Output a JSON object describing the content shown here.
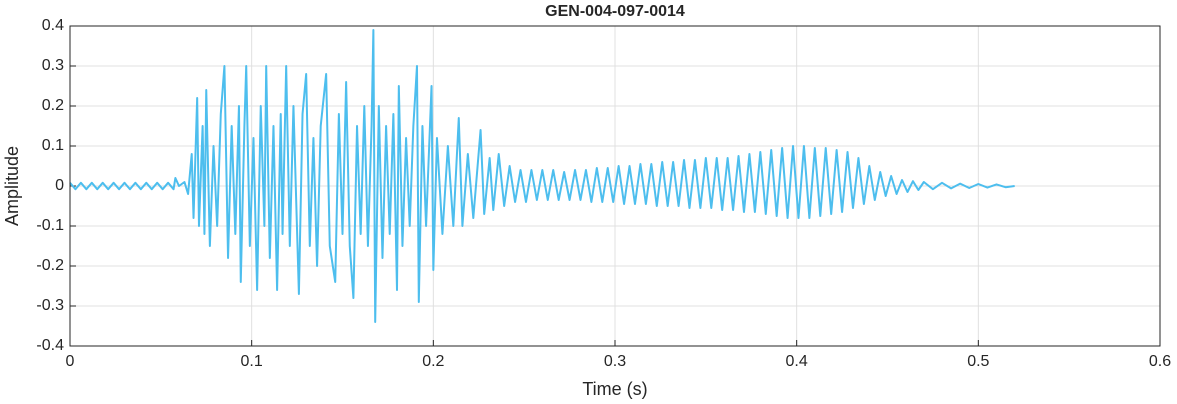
{
  "chart_data": {
    "type": "line",
    "title": "GEN-004-097-0014",
    "xlabel": "Time (s)",
    "ylabel": "Amplitude",
    "color": "#4dbeee",
    "grid": true,
    "xlim": [
      0,
      0.6
    ],
    "ylim": [
      -0.4,
      0.4
    ],
    "xticks": [
      0,
      0.1,
      0.2,
      0.3,
      0.4,
      0.5,
      0.6
    ],
    "yticks": [
      -0.4,
      -0.3,
      -0.2,
      -0.1,
      0,
      0.1,
      0.2,
      0.3,
      0.4
    ],
    "x": [
      0,
      0.003,
      0.006,
      0.009,
      0.012,
      0.015,
      0.018,
      0.021,
      0.024,
      0.027,
      0.03,
      0.033,
      0.036,
      0.039,
      0.042,
      0.045,
      0.048,
      0.051,
      0.054,
      0.057,
      0.058,
      0.06,
      0.063,
      0.065,
      0.067,
      0.068,
      0.07,
      0.071,
      0.073,
      0.074,
      0.075,
      0.077,
      0.079,
      0.081,
      0.083,
      0.085,
      0.087,
      0.089,
      0.091,
      0.093,
      0.094,
      0.096,
      0.097,
      0.099,
      0.101,
      0.103,
      0.105,
      0.107,
      0.108,
      0.11,
      0.112,
      0.114,
      0.116,
      0.117,
      0.119,
      0.121,
      0.123,
      0.126,
      0.128,
      0.13,
      0.132,
      0.134,
      0.136,
      0.138,
      0.141,
      0.143,
      0.146,
      0.148,
      0.15,
      0.152,
      0.154,
      0.156,
      0.158,
      0.16,
      0.162,
      0.164,
      0.166,
      0.167,
      0.168,
      0.17,
      0.172,
      0.174,
      0.176,
      0.178,
      0.18,
      0.181,
      0.183,
      0.185,
      0.187,
      0.189,
      0.191,
      0.192,
      0.194,
      0.196,
      0.199,
      0.2,
      0.202,
      0.205,
      0.208,
      0.211,
      0.214,
      0.216,
      0.219,
      0.222,
      0.226,
      0.228,
      0.231,
      0.233,
      0.236,
      0.239,
      0.242,
      0.245,
      0.248,
      0.251,
      0.254,
      0.257,
      0.26,
      0.263,
      0.266,
      0.269,
      0.272,
      0.275,
      0.278,
      0.281,
      0.284,
      0.287,
      0.29,
      0.293,
      0.296,
      0.299,
      0.302,
      0.305,
      0.308,
      0.311,
      0.314,
      0.317,
      0.32,
      0.323,
      0.326,
      0.329,
      0.332,
      0.335,
      0.338,
      0.341,
      0.344,
      0.347,
      0.35,
      0.353,
      0.356,
      0.359,
      0.362,
      0.365,
      0.368,
      0.371,
      0.374,
      0.377,
      0.38,
      0.383,
      0.386,
      0.389,
      0.392,
      0.395,
      0.398,
      0.401,
      0.404,
      0.407,
      0.41,
      0.413,
      0.416,
      0.419,
      0.422,
      0.425,
      0.428,
      0.431,
      0.434,
      0.437,
      0.44,
      0.443,
      0.446,
      0.449,
      0.452,
      0.455,
      0.458,
      0.461,
      0.464,
      0.467,
      0.47,
      0.475,
      0.48,
      0.485,
      0.49,
      0.495,
      0.5,
      0.505,
      0.51,
      0.515,
      0.52
    ],
    "values": [
      0.008,
      -0.008,
      0.008,
      -0.008,
      0.008,
      -0.008,
      0.008,
      -0.008,
      0.008,
      -0.008,
      0.008,
      -0.008,
      0.008,
      -0.008,
      0.008,
      -0.008,
      0.008,
      -0.008,
      0.008,
      -0.008,
      0.02,
      0,
      0.01,
      -0.02,
      0.08,
      -0.08,
      0.22,
      -0.1,
      0.15,
      -0.12,
      0.24,
      -0.15,
      0.1,
      -0.1,
      0.18,
      0.3,
      -0.18,
      0.15,
      -0.12,
      0.2,
      -0.24,
      0.15,
      0.3,
      -0.15,
      0.12,
      -0.26,
      0.2,
      -0.1,
      0.3,
      -0.18,
      0.15,
      -0.26,
      0.18,
      -0.12,
      0.3,
      -0.15,
      0.2,
      -0.27,
      0.18,
      0.28,
      -0.15,
      0.12,
      -0.2,
      0.15,
      0.28,
      -0.15,
      -0.24,
      0.18,
      -0.12,
      0.26,
      -0.15,
      -0.28,
      0.15,
      -0.12,
      0.2,
      -0.15,
      0.15,
      0.39,
      -0.34,
      0.2,
      -0.18,
      0.15,
      -0.12,
      0.18,
      -0.26,
      0.25,
      -0.15,
      0.12,
      -0.1,
      0.15,
      0.3,
      -0.29,
      0.15,
      -0.1,
      0.25,
      -0.21,
      0.12,
      -0.12,
      0.1,
      -0.1,
      0.17,
      -0.1,
      0.08,
      -0.08,
      0.14,
      -0.07,
      0.07,
      -0.06,
      0.08,
      -0.05,
      0.05,
      -0.04,
      0.04,
      -0.04,
      0.04,
      -0.035,
      0.04,
      -0.035,
      0.04,
      -0.035,
      0.035,
      -0.035,
      0.04,
      -0.035,
      0.04,
      -0.04,
      0.045,
      -0.04,
      0.045,
      -0.04,
      0.05,
      -0.045,
      0.05,
      -0.045,
      0.055,
      -0.045,
      0.055,
      -0.05,
      0.06,
      -0.05,
      0.06,
      -0.05,
      0.065,
      -0.055,
      0.065,
      -0.055,
      0.07,
      -0.055,
      0.07,
      -0.06,
      0.07,
      -0.06,
      0.075,
      -0.065,
      0.08,
      -0.065,
      0.085,
      -0.07,
      0.09,
      -0.075,
      0.095,
      -0.08,
      0.1,
      -0.08,
      0.1,
      -0.08,
      0.095,
      -0.075,
      0.095,
      -0.07,
      0.09,
      -0.065,
      0.085,
      -0.055,
      0.07,
      -0.045,
      0.05,
      -0.035,
      0.035,
      -0.025,
      0.025,
      -0.02,
      0.015,
      -0.015,
      0.012,
      -0.01,
      0.01,
      -0.008,
      0.008,
      -0.006,
      0.006,
      -0.005,
      0.005,
      -0.004,
      0.004,
      -0.003,
      0
    ]
  }
}
